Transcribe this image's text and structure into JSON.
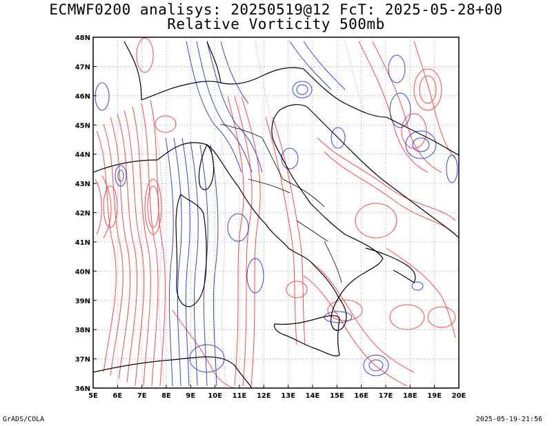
{
  "title_line1": "ECMWF0200 analisys: 20250519@12 FcT: 2025-05-28+00",
  "title_line2": "Relative Vorticity 500mb",
  "footer_left": "GrADS/COLA",
  "footer_right": "2025-05-19-21:56",
  "map": {
    "lon_min": 5,
    "lon_max": 20,
    "lat_min": 36,
    "lat_max": 48,
    "lon_ticks": [
      "5E",
      "6E",
      "7E",
      "8E",
      "9E",
      "10E",
      "11E",
      "12E",
      "13E",
      "14E",
      "15E",
      "16E",
      "17E",
      "18E",
      "19E",
      "20E"
    ],
    "lat_ticks": [
      "36N",
      "37N",
      "38N",
      "39N",
      "40N",
      "41N",
      "42N",
      "43N",
      "44N",
      "45N",
      "46N",
      "47N",
      "48N"
    ],
    "grid": "dotted",
    "colors": {
      "positive": "#ff4444",
      "negative": "#3344dd",
      "coast": "#000000",
      "grid": "#888888"
    }
  }
}
